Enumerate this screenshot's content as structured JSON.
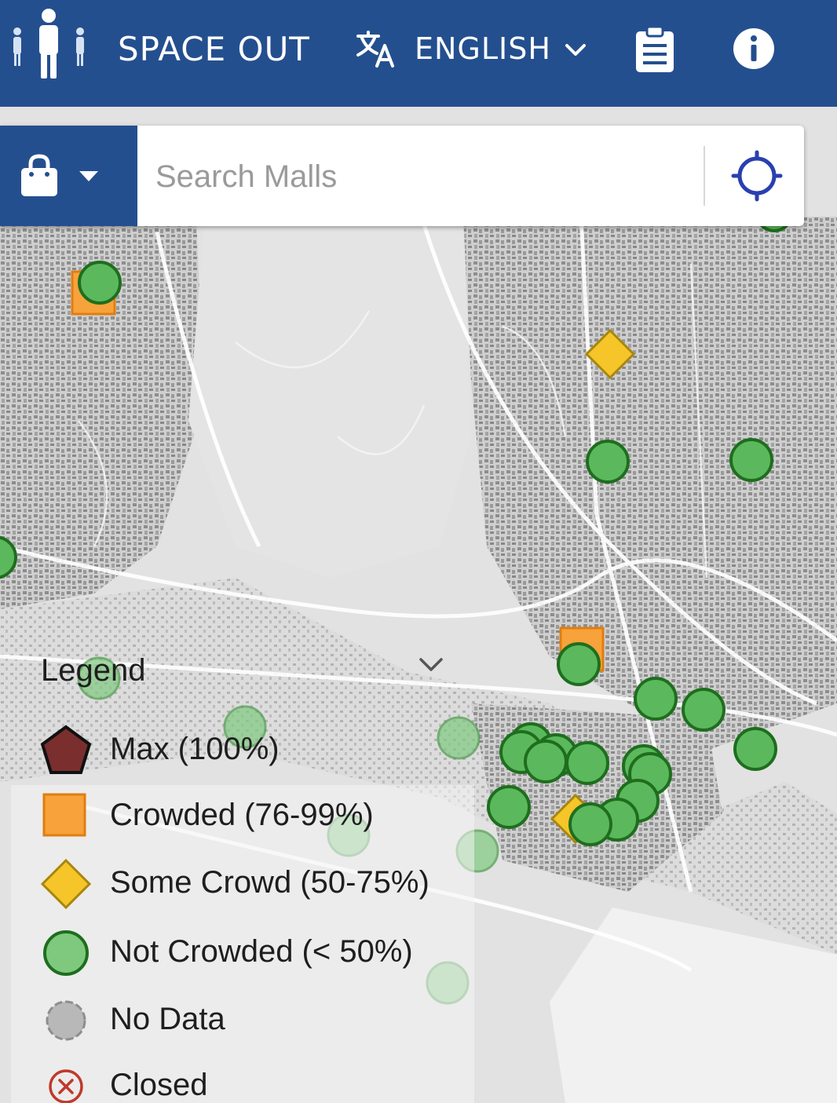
{
  "header": {
    "title": "SPACE OUT",
    "language": "ENGLISH",
    "logo_icon": "people-distancing-icon",
    "language_icon": "translate-icon",
    "clipboard_icon": "clipboard-list-icon",
    "info_icon": "info-icon"
  },
  "search": {
    "placeholder": "Search Malls",
    "category_icon": "shopping-bag-icon",
    "locate_icon": "crosshair-locate-icon"
  },
  "colors": {
    "header": "#244f8f",
    "max": "#7a2e2e",
    "crowded": "#f7a23a",
    "some_crowd": "#f5c52a",
    "not_crowded": "#5cb85c",
    "no_data": "#b8b8b8",
    "closed": "#c0392b"
  },
  "legend": {
    "title": "Legend",
    "items": [
      {
        "key": "max",
        "label": "Max (100%)"
      },
      {
        "key": "crowded",
        "label": "Crowded (76-99%)"
      },
      {
        "key": "some_crowd",
        "label": "Some Crowd (50-75%)"
      },
      {
        "key": "not_crowded",
        "label": "Not Crowded (< 50%)"
      },
      {
        "key": "no_data",
        "label": "No Data"
      },
      {
        "key": "closed",
        "label": "Closed"
      }
    ]
  },
  "map_markers": {
    "crowded_count": 2,
    "some_crowd_count": 2,
    "not_crowded_visible": 30
  }
}
